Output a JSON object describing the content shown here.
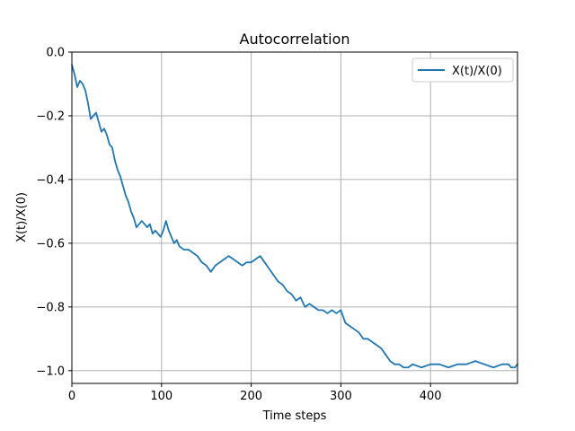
{
  "chart_data": {
    "type": "line",
    "title": "Autocorrelation",
    "xlabel": "Time steps",
    "ylabel": "X(t)/X(0)",
    "xlim": [
      0,
      497
    ],
    "ylim": [
      -1.04,
      0.0
    ],
    "xticks": [
      0,
      100,
      200,
      300,
      400
    ],
    "yticks": [
      0.0,
      -0.2,
      -0.4,
      -0.6,
      -0.8,
      -1.0
    ],
    "xtick_labels": [
      "0",
      "100",
      "200",
      "300",
      "400"
    ],
    "ytick_labels": [
      "0.0",
      "−0.2",
      "−0.4",
      "−0.6",
      "−0.8",
      "−1.0"
    ],
    "grid": true,
    "legend_position": "top-right",
    "line_color": "#1f77b4",
    "series": [
      {
        "name": "X(t)/X(0)",
        "x": [
          0,
          3,
          6,
          9,
          12,
          15,
          18,
          21,
          24,
          27,
          30,
          33,
          36,
          39,
          42,
          45,
          48,
          51,
          54,
          57,
          60,
          63,
          66,
          69,
          72,
          75,
          78,
          81,
          84,
          87,
          90,
          93,
          96,
          99,
          102,
          105,
          108,
          111,
          114,
          117,
          120,
          125,
          130,
          135,
          140,
          145,
          150,
          155,
          160,
          165,
          170,
          175,
          180,
          185,
          190,
          195,
          200,
          205,
          210,
          215,
          220,
          225,
          230,
          235,
          240,
          245,
          250,
          255,
          260,
          265,
          270,
          275,
          280,
          285,
          290,
          295,
          300,
          305,
          310,
          315,
          320,
          325,
          330,
          335,
          340,
          345,
          350,
          355,
          360,
          365,
          370,
          375,
          380,
          390,
          400,
          410,
          420,
          430,
          440,
          450,
          460,
          470,
          480,
          487,
          490,
          494,
          497
        ],
        "y": [
          -0.04,
          -0.07,
          -0.11,
          -0.09,
          -0.1,
          -0.12,
          -0.16,
          -0.21,
          -0.2,
          -0.19,
          -0.22,
          -0.25,
          -0.24,
          -0.26,
          -0.29,
          -0.3,
          -0.34,
          -0.37,
          -0.39,
          -0.42,
          -0.45,
          -0.47,
          -0.5,
          -0.52,
          -0.55,
          -0.54,
          -0.53,
          -0.54,
          -0.55,
          -0.54,
          -0.57,
          -0.56,
          -0.57,
          -0.58,
          -0.56,
          -0.53,
          -0.56,
          -0.58,
          -0.6,
          -0.59,
          -0.61,
          -0.62,
          -0.62,
          -0.63,
          -0.64,
          -0.66,
          -0.67,
          -0.69,
          -0.67,
          -0.66,
          -0.65,
          -0.64,
          -0.65,
          -0.66,
          -0.67,
          -0.66,
          -0.66,
          -0.65,
          -0.64,
          -0.66,
          -0.68,
          -0.7,
          -0.72,
          -0.73,
          -0.75,
          -0.76,
          -0.78,
          -0.77,
          -0.8,
          -0.79,
          -0.8,
          -0.81,
          -0.81,
          -0.82,
          -0.81,
          -0.82,
          -0.81,
          -0.85,
          -0.86,
          -0.87,
          -0.88,
          -0.9,
          -0.9,
          -0.91,
          -0.92,
          -0.93,
          -0.95,
          -0.97,
          -0.98,
          -0.98,
          -0.99,
          -0.99,
          -0.98,
          -0.99,
          -0.98,
          -0.98,
          -0.99,
          -0.98,
          -0.98,
          -0.97,
          -0.98,
          -0.99,
          -0.98,
          -0.98,
          -0.99,
          -0.99,
          -0.98
        ]
      }
    ]
  }
}
